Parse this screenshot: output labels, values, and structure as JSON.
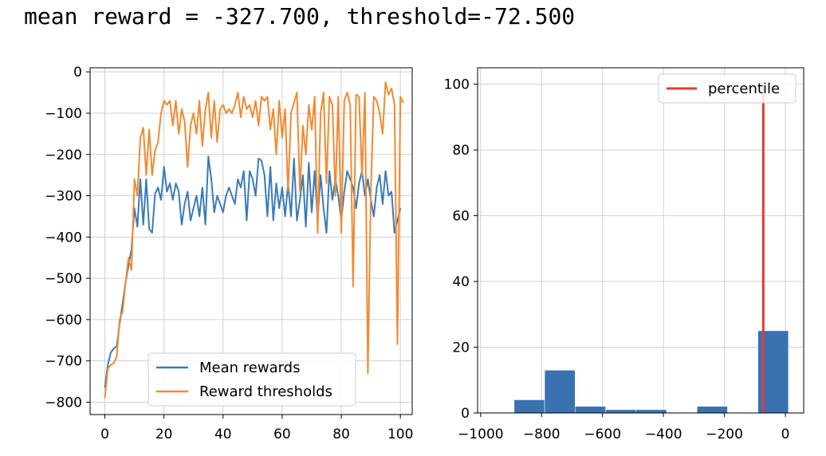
{
  "header_text": "mean reward = -327.700, threshold=-72.500",
  "chart_data": [
    {
      "type": "line",
      "xlim": [
        -5,
        104
      ],
      "ylim": [
        -830,
        10
      ],
      "x_ticks": [
        0,
        20,
        40,
        60,
        80,
        100
      ],
      "x_tick_labels": [
        "0",
        "20",
        "40",
        "60",
        "80",
        "100"
      ],
      "y_ticks": [
        0,
        -100,
        -200,
        -300,
        -400,
        -500,
        -600,
        -700,
        -800
      ],
      "y_tick_labels": [
        "0",
        "−100",
        "−200",
        "−300",
        "−400",
        "−500",
        "−600",
        "−700",
        "−800"
      ],
      "grid": true,
      "legend_position": "bottom-center",
      "series": [
        {
          "name": "Mean rewards",
          "color": "#3a7bb8",
          "values": [
            -765,
            -710,
            -680,
            -670,
            -665,
            -610,
            -560,
            -510,
            -470,
            -430,
            -330,
            -375,
            -260,
            -370,
            -260,
            -380,
            -390,
            -295,
            -280,
            -310,
            -230,
            -290,
            -270,
            -310,
            -270,
            -290,
            -370,
            -320,
            -290,
            -360,
            -330,
            -300,
            -350,
            -280,
            -370,
            -205,
            -260,
            -340,
            -300,
            -320,
            -340,
            -300,
            -280,
            -300,
            -320,
            -260,
            -280,
            -240,
            -360,
            -240,
            -260,
            -300,
            -210,
            -215,
            -250,
            -350,
            -230,
            -360,
            -270,
            -330,
            -280,
            -350,
            -270,
            -350,
            -210,
            -360,
            -310,
            -250,
            -375,
            -220,
            -340,
            -240,
            -360,
            -250,
            -330,
            -390,
            -240,
            -310,
            -260,
            -300,
            -360,
            -290,
            -240,
            -260,
            -280,
            -330,
            -270,
            -240,
            -300,
            -260,
            -310,
            -350,
            -280,
            -250,
            -320,
            -240,
            -300,
            -290,
            -390,
            -360,
            -330
          ]
        },
        {
          "name": "Reward thresholds",
          "color": "#f28a30",
          "values": [
            -790,
            -720,
            -710,
            -705,
            -690,
            -600,
            -580,
            -510,
            -450,
            -480,
            -260,
            -300,
            -160,
            -135,
            -250,
            -140,
            -250,
            -190,
            -170,
            -100,
            -70,
            -80,
            -70,
            -130,
            -70,
            -150,
            -90,
            -120,
            -230,
            -130,
            -100,
            -150,
            -70,
            -180,
            -90,
            -50,
            -160,
            -70,
            -170,
            -90,
            -80,
            -100,
            -90,
            -100,
            -80,
            -50,
            -110,
            -60,
            -90,
            -80,
            -110,
            -70,
            -130,
            -60,
            -70,
            -60,
            -140,
            -90,
            -200,
            -70,
            -160,
            -90,
            -290,
            -100,
            -75,
            -50,
            -290,
            -130,
            -200,
            -80,
            -140,
            -60,
            -390,
            -100,
            -50,
            -270,
            -60,
            -80,
            -300,
            -60,
            -390,
            -70,
            -50,
            -80,
            -520,
            -55,
            -60,
            -250,
            -50,
            -730,
            -290,
            -60,
            -70,
            -100,
            -150,
            -25,
            -55,
            -40,
            -80,
            -660,
            -60,
            -75
          ]
        }
      ]
    },
    {
      "type": "bar",
      "xlim": [
        -1010,
        60
      ],
      "ylim": [
        0,
        105
      ],
      "x_ticks": [
        -1000,
        -800,
        -600,
        -400,
        -200,
        0
      ],
      "x_tick_labels": [
        "−1000",
        "−800",
        "−600",
        "−400",
        "−200",
        "0"
      ],
      "y_ticks": [
        0,
        20,
        40,
        60,
        80,
        100
      ],
      "y_tick_labels": [
        "0",
        "20",
        "40",
        "60",
        "80",
        "100"
      ],
      "grid": true,
      "legend_position": "top-right",
      "bar_color": "#3a72b0",
      "bins": [
        {
          "start": -890,
          "end": -790,
          "count": 4
        },
        {
          "start": -790,
          "end": -690,
          "count": 13
        },
        {
          "start": -690,
          "end": -590,
          "count": 2
        },
        {
          "start": -590,
          "end": -490,
          "count": 1
        },
        {
          "start": -490,
          "end": -390,
          "count": 1
        },
        {
          "start": -390,
          "end": -290,
          "count": 0
        },
        {
          "start": -290,
          "end": -190,
          "count": 2
        },
        {
          "start": -190,
          "end": -90,
          "count": 0
        },
        {
          "start": -90,
          "end": 10,
          "count": 25
        }
      ],
      "vline": {
        "x": -72.5,
        "color": "#e03c3c",
        "label": "percentile"
      }
    }
  ]
}
